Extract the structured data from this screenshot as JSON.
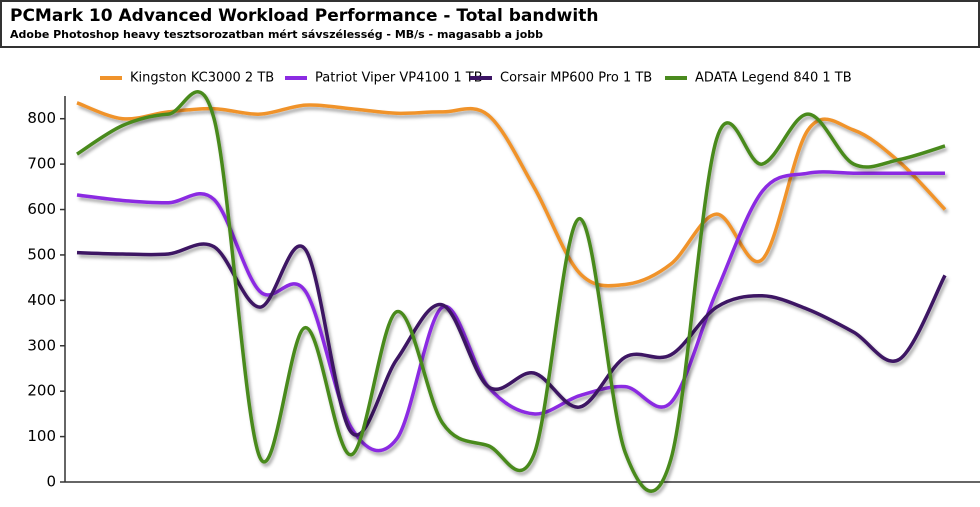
{
  "chart_data": {
    "type": "line",
    "title": "PCMark 10 Advanced Workload Performance - Total bandwith",
    "subtitle": "Adobe Photoshop heavy tesztsorozatban mért sávszélesség - MB/s - magasabb a jobb",
    "categories": [
      null,
      null,
      null,
      null,
      null,
      null,
      null,
      null,
      null,
      null,
      null,
      null,
      null,
      null,
      null,
      null,
      null,
      null,
      null,
      null
    ],
    "series": [
      {
        "name": "Kingston KC3000 2 TB",
        "color": "#f0932b",
        "values": [
          835,
          800,
          815,
          822,
          810,
          830,
          822,
          812,
          815,
          808,
          650,
          460,
          435,
          480,
          590,
          490,
          775,
          775,
          705,
          600
        ]
      },
      {
        "name": "Patriot Viper VP4100 1 TB",
        "color": "#8b2be2",
        "values": [
          632,
          620,
          615,
          622,
          420,
          420,
          120,
          95,
          385,
          210,
          150,
          190,
          210,
          175,
          420,
          640,
          680,
          680,
          680,
          680
        ]
      },
      {
        "name": "Corsair MP600 Pro 1 TB",
        "color": "#3c1464",
        "values": [
          505,
          502,
          502,
          518,
          385,
          512,
          110,
          270,
          390,
          210,
          240,
          165,
          275,
          280,
          385,
          410,
          380,
          330,
          270,
          455
        ]
      },
      {
        "name": "ADATA Legend 840 1 TB",
        "color": "#4a8a1e",
        "values": [
          722,
          785,
          810,
          800,
          55,
          340,
          60,
          375,
          130,
          80,
          60,
          580,
          65,
          50,
          755,
          700,
          810,
          700,
          710,
          740
        ]
      }
    ],
    "ylim": [
      0,
      850
    ],
    "yticks": [
      0,
      100,
      200,
      300,
      400,
      500,
      600,
      700,
      800
    ],
    "legend": "top"
  }
}
